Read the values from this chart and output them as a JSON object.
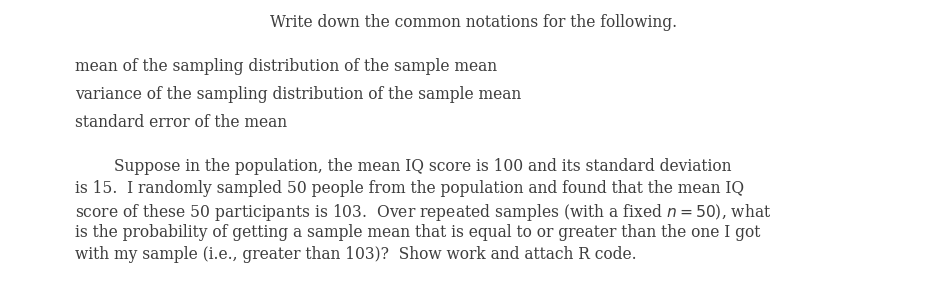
{
  "background_color": "#ffffff",
  "text_color": "#3d3d3d",
  "figsize": [
    9.48,
    3.06
  ],
  "dpi": 100,
  "title_line": "Write down the common notations for the following.",
  "bullet_lines": [
    "mean of the sampling distribution of the sample mean",
    "variance of the sampling distribution of the sample mean",
    "standard error of the mean"
  ],
  "para_line1": "        Suppose in the population, the mean IQ score is 100 and its standard deviation",
  "para_line2": "is 15.  I randomly sampled 50 people from the population and found that the mean IQ",
  "para_line3a": "score of these 50 participants is 103.  Over repeated samples (with a fixed ",
  "para_line3b": "n",
  "para_line3c": " = 50), what",
  "para_line4": "is the probability of getting a sample mean that is equal to or greater than the one I got",
  "para_line5": "with my sample (i.e., greater than 103)?  Show work and attach R code.",
  "font_size": 11.2,
  "font_family": "serif"
}
